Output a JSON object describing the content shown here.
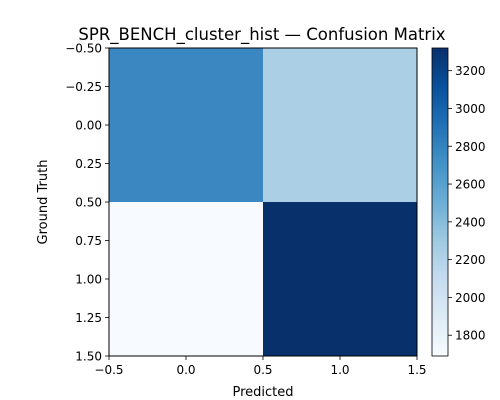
{
  "chart_data": {
    "type": "heatmap",
    "title": "SPR_BENCH_cluster_hist — Confusion Matrix",
    "xlabel": "Predicted",
    "ylabel": "Ground Truth",
    "matrix": [
      [
        2850,
        2240
      ],
      [
        1690,
        3320
      ]
    ],
    "xlim": [
      -0.5,
      1.5
    ],
    "ylim": [
      1.5,
      -0.5
    ],
    "x_ticks": [
      "−0.5",
      "0.0",
      "0.5",
      "1.0",
      "1.5"
    ],
    "y_ticks": [
      "−0.50",
      "−0.25",
      "0.00",
      "0.25",
      "0.50",
      "0.75",
      "1.00",
      "1.25",
      "1.50"
    ],
    "colormap": "Blues",
    "colorbar": {
      "range": [
        1690,
        3320
      ],
      "ticks": [
        "1800",
        "2000",
        "2200",
        "2400",
        "2600",
        "2800",
        "3000",
        "3200"
      ],
      "tick_values": [
        1800,
        2000,
        2200,
        2400,
        2600,
        2800,
        3000,
        3200
      ]
    },
    "cell_colors": [
      "#3a87c2",
      "#abcfe5",
      "#f7fbff",
      "#08306b"
    ]
  }
}
